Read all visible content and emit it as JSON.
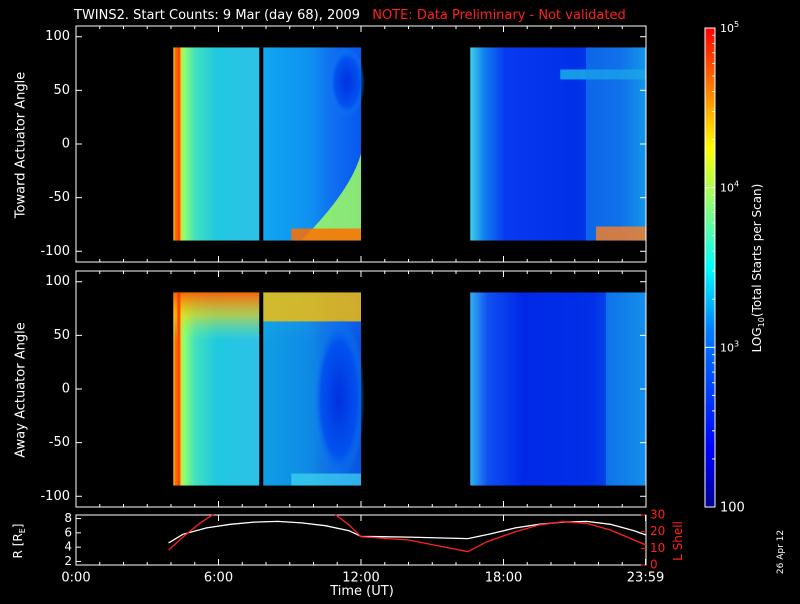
{
  "title": {
    "main": "TWINS2. Start Counts:  9 Mar (day  68), 2009",
    "note": "NOTE: Data Preliminary - Not validated"
  },
  "date_stamp": "26 Apr 12",
  "colors": {
    "background": "#000000",
    "text": "#ffffff",
    "note": "#ff2020",
    "l_shell": "#ff2020",
    "r_line": "#ffffff"
  },
  "chart_data": [
    {
      "type": "heatmap",
      "name": "toward-panel",
      "ylabel": "Toward Actuator Angle",
      "ylim": [
        -110,
        110
      ],
      "yticks": [
        100,
        50,
        0,
        -50,
        -100
      ],
      "xlim": [
        0,
        24
      ],
      "data_coverage": [
        [
          4.1,
          12.0
        ],
        [
          16.6,
          24.0
        ]
      ],
      "angle_range": [
        -90,
        90
      ],
      "gap_at": 7.8,
      "description_levels": "log10 counts ~2.3-3.6 mostly; high near edges"
    },
    {
      "type": "heatmap",
      "name": "away-panel",
      "ylabel": "Away Actuator Angle",
      "ylim": [
        -110,
        110
      ],
      "yticks": [
        100,
        50,
        0,
        -50,
        -100
      ],
      "xlim": [
        0,
        24
      ],
      "data_coverage": [
        [
          4.1,
          12.0
        ],
        [
          16.6,
          24.0
        ]
      ],
      "angle_range": [
        -90,
        90
      ],
      "gap_at": 7.8
    },
    {
      "type": "line",
      "name": "orbit-panel",
      "ylabel_left": "R [R",
      "ylabel_left_sub": "E",
      "ylabel_left_close": "]",
      "ylabel_right": "L Shell",
      "yticks_left": [
        8,
        6,
        4,
        2
      ],
      "yticks_right": [
        30,
        20,
        10,
        0
      ],
      "ylim_left": [
        1.5,
        8.5
      ],
      "ylim_right": [
        0,
        30
      ],
      "xticks": [
        "0:00",
        "6:00",
        "12:00",
        "18:00",
        "23:59"
      ],
      "xtick_values": [
        0,
        6,
        12,
        18,
        23.98
      ],
      "xlabel": "Time (UT)",
      "series": [
        {
          "axis": "left",
          "x": [
            3.9,
            4.5,
            5.5,
            6.5,
            7.5,
            8.5,
            9.5,
            10.5,
            11.5,
            12.0,
            14.0,
            16.5,
            17.5,
            18.5,
            19.5,
            20.5,
            21.5,
            22.5,
            23.5,
            24.0
          ],
          "y": [
            4.6,
            5.8,
            6.7,
            7.2,
            7.5,
            7.6,
            7.4,
            7.0,
            6.3,
            5.5,
            5.4,
            5.2,
            5.9,
            6.7,
            7.2,
            7.5,
            7.6,
            7.2,
            6.3,
            5.7
          ]
        },
        {
          "axis": "right",
          "x": [
            3.9,
            4.6,
            5.3,
            5.8
          ],
          "y": [
            9,
            18,
            26,
            31
          ]
        },
        {
          "axis": "right",
          "x": [
            10.9,
            11.5,
            12.0,
            14.0,
            16.5,
            17.3,
            18.5,
            19.5,
            20.5,
            21.5,
            22.5,
            23.5,
            24.0
          ],
          "y": [
            31,
            24,
            17,
            15,
            8,
            14,
            20,
            24,
            26,
            25,
            21,
            15,
            12
          ]
        }
      ]
    }
  ],
  "colorbar": {
    "label": "LOG",
    "label_sub": "10",
    "label_rest": "(Total Starts per Scan)",
    "ticks": [
      {
        "base": "10",
        "exp": "5",
        "value": 5
      },
      {
        "base": "10",
        "exp": "4",
        "value": 4
      },
      {
        "base": "10",
        "exp": "3",
        "value": 3
      },
      {
        "base": "100",
        "exp": "",
        "value": 2
      }
    ],
    "range": [
      2,
      5
    ]
  }
}
